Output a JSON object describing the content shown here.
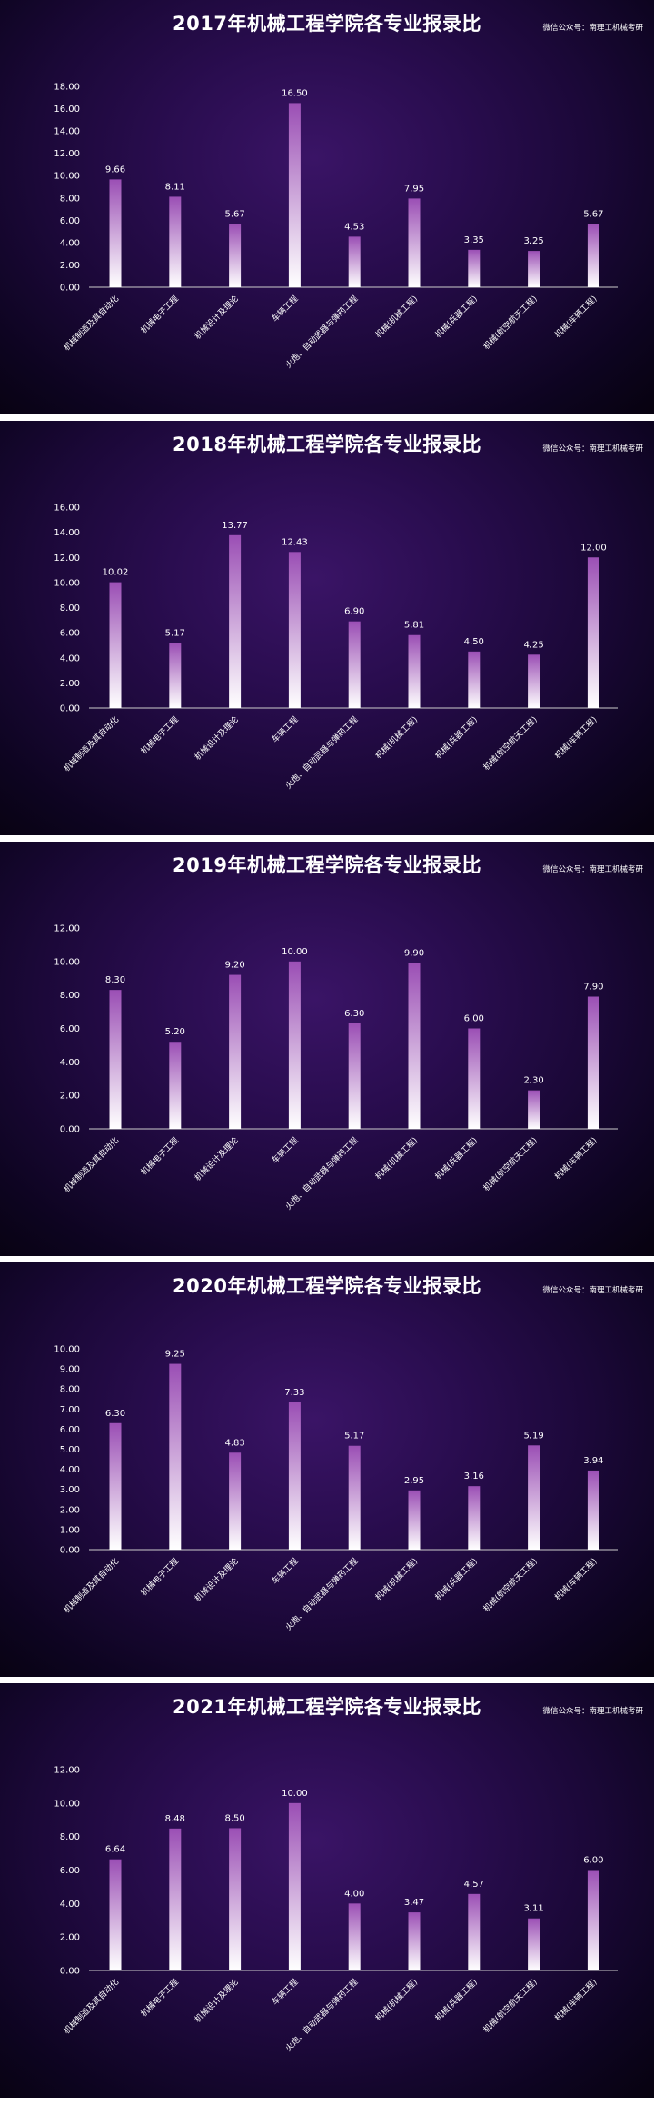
{
  "watermark": "微信公众号：南理工机械考研",
  "chart_data": [
    {
      "type": "bar",
      "title": "2017年机械工程学院各专业报录比",
      "categories": [
        "机械制造及其自动化",
        "机械电子工程",
        "机械设计及理论",
        "车辆工程",
        "火炮、自动武器与弹药工程",
        "机械(机械工程)",
        "机械(兵器工程)",
        "机械(航空航天工程)",
        "机械(车辆工程)"
      ],
      "values": [
        9.66,
        8.11,
        5.67,
        16.5,
        4.53,
        7.95,
        3.35,
        3.25,
        5.67
      ],
      "value_labels": [
        "9.66",
        "8.11",
        "5.67",
        "16.50",
        "4.53",
        "7.95",
        "3.35",
        "3.25",
        "5.67"
      ],
      "ylim": [
        0,
        18
      ],
      "yticks": [
        0,
        2,
        4,
        6,
        8,
        10,
        12,
        14,
        16,
        18
      ],
      "ytick_labels": [
        "0.00",
        "2.00",
        "4.00",
        "6.00",
        "8.00",
        "10.00",
        "12.00",
        "14.00",
        "16.00",
        "18.00"
      ],
      "grid": false,
      "legend": "none"
    },
    {
      "type": "bar",
      "title": "2018年机械工程学院各专业报录比",
      "categories": [
        "机械制造及其自动化",
        "机械电子工程",
        "机械设计及理论",
        "车辆工程",
        "火炮、自动武器与弹药工程",
        "机械(机械工程)",
        "机械(兵器工程)",
        "机械(航空航天工程)",
        "机械(车辆工程)"
      ],
      "values": [
        10.02,
        5.17,
        13.77,
        12.43,
        6.9,
        5.81,
        4.5,
        4.25,
        12.0
      ],
      "value_labels": [
        "10.02",
        "5.17",
        "13.77",
        "12.43",
        "6.90",
        "5.81",
        "4.50",
        "4.25",
        "12.00"
      ],
      "ylim": [
        0,
        16
      ],
      "yticks": [
        0,
        2,
        4,
        6,
        8,
        10,
        12,
        14,
        16
      ],
      "ytick_labels": [
        "0.00",
        "2.00",
        "4.00",
        "6.00",
        "8.00",
        "10.00",
        "12.00",
        "14.00",
        "16.00"
      ],
      "grid": false,
      "legend": "none"
    },
    {
      "type": "bar",
      "title": "2019年机械工程学院各专业报录比",
      "categories": [
        "机械制造及其自动化",
        "机械电子工程",
        "机械设计及理论",
        "车辆工程",
        "火炮、自动武器与弹药工程",
        "机械(机械工程)",
        "机械(兵器工程)",
        "机械(航空航天工程)",
        "机械(车辆工程)"
      ],
      "values": [
        8.3,
        5.2,
        9.2,
        10.0,
        6.3,
        9.9,
        6.0,
        2.3,
        7.9
      ],
      "value_labels": [
        "8.30",
        "5.20",
        "9.20",
        "10.00",
        "6.30",
        "9.90",
        "6.00",
        "2.30",
        "7.90"
      ],
      "ylim": [
        0,
        12
      ],
      "yticks": [
        0,
        2,
        4,
        6,
        8,
        10,
        12
      ],
      "ytick_labels": [
        "0.00",
        "2.00",
        "4.00",
        "6.00",
        "8.00",
        "10.00",
        "12.00"
      ],
      "grid": false,
      "legend": "none"
    },
    {
      "type": "bar",
      "title": "2020年机械工程学院各专业报录比",
      "categories": [
        "机械制造及其自动化",
        "机械电子工程",
        "机械设计及理论",
        "车辆工程",
        "火炮、自动武器与弹药工程",
        "机械(机械工程)",
        "机械(兵器工程)",
        "机械(航空航天工程)",
        "机械(车辆工程)"
      ],
      "values": [
        6.3,
        9.25,
        4.83,
        7.33,
        5.17,
        2.95,
        3.16,
        5.19,
        3.94
      ],
      "value_labels": [
        "6.30",
        "9.25",
        "4.83",
        "7.33",
        "5.17",
        "2.95",
        "3.16",
        "5.19",
        "3.94"
      ],
      "ylim": [
        0,
        10
      ],
      "yticks": [
        0,
        1,
        2,
        3,
        4,
        5,
        6,
        7,
        8,
        9,
        10
      ],
      "ytick_labels": [
        "0.00",
        "1.00",
        "2.00",
        "3.00",
        "4.00",
        "5.00",
        "6.00",
        "7.00",
        "8.00",
        "9.00",
        "10.00"
      ],
      "grid": false,
      "legend": "none"
    },
    {
      "type": "bar",
      "title": "2021年机械工程学院各专业报录比",
      "categories": [
        "机械制造及其自动化",
        "机械电子工程",
        "机械设计及理论",
        "车辆工程",
        "火炮、自动武器与弹药工程",
        "机械(机械工程)",
        "机械(兵器工程)",
        "机械(航空航天工程)",
        "机械(车辆工程)"
      ],
      "values": [
        6.64,
        8.48,
        8.5,
        10.0,
        4.0,
        3.47,
        4.57,
        3.11,
        6.0
      ],
      "value_labels": [
        "6.64",
        "8.48",
        "8.50",
        "10.00",
        "4.00",
        "3.47",
        "4.57",
        "3.11",
        "6.00"
      ],
      "ylim": [
        0,
        12
      ],
      "yticks": [
        0,
        2,
        4,
        6,
        8,
        10,
        12
      ],
      "ytick_labels": [
        "0.00",
        "2.00",
        "4.00",
        "6.00",
        "8.00",
        "10.00",
        "12.00"
      ],
      "grid": false,
      "legend": "none"
    }
  ],
  "colors": {
    "bar_top": "#9b4fb5",
    "bar_bottom": "#ffffff",
    "text": "#ffffff",
    "axis": "#cccccc"
  }
}
